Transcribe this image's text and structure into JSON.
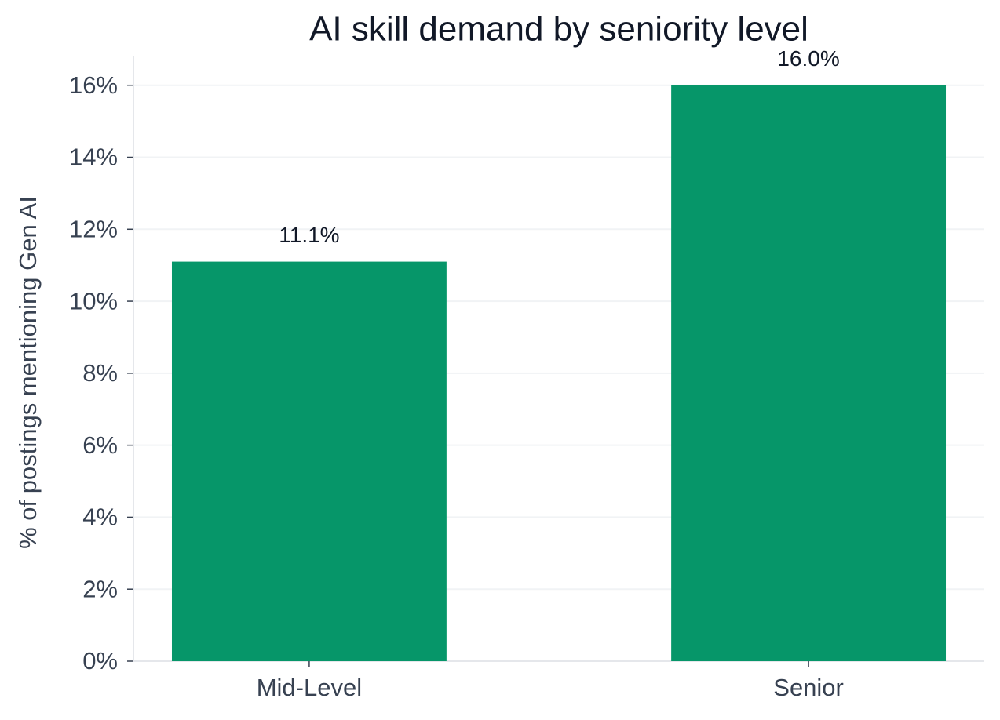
{
  "chart_data": {
    "type": "bar",
    "title": "AI skill demand by seniority level",
    "y_label": "% of postings mentioning Gen AI",
    "categories": [
      "Mid-Level",
      "Senior"
    ],
    "values": [
      11.1,
      16.0
    ],
    "value_labels": [
      "11.1%",
      "16.0%"
    ],
    "color": "#069669",
    "ylim": [
      0,
      16.8
    ],
    "yticks": [
      {
        "value": 0,
        "label": "0%"
      },
      {
        "value": 2,
        "label": "2%"
      },
      {
        "value": 4,
        "label": "4%"
      },
      {
        "value": 6,
        "label": "6%"
      },
      {
        "value": 8,
        "label": "8%"
      },
      {
        "value": 10,
        "label": "10%"
      },
      {
        "value": 12,
        "label": "12%"
      },
      {
        "value": 14,
        "label": "14%"
      },
      {
        "value": 16,
        "label": "16%"
      }
    ],
    "grid": true
  }
}
